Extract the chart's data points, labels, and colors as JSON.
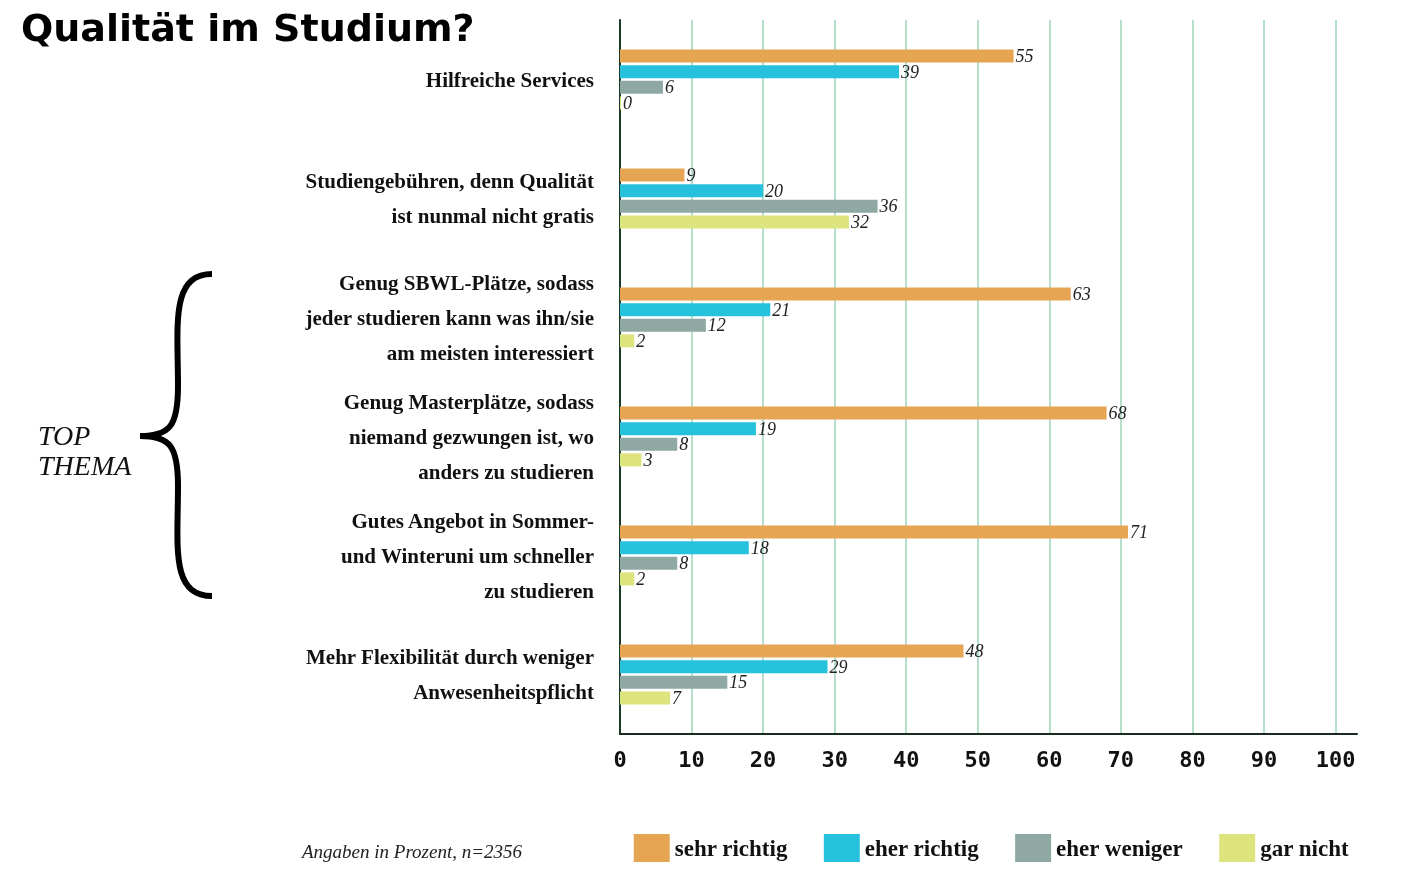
{
  "chart_data": {
    "type": "bar",
    "orientation": "horizontal",
    "title": "Qualität im Studium?",
    "categories": [
      "Hilfreiche Services",
      "Studiengebühren, denn Qualität\nist nunmal nicht gratis",
      "Genug SBWL-Plätze, sodass\njeder studieren kann was ihn/sie\nam meisten interessiert",
      "Genug Masterplätze, sodass\nniemand gezwungen ist, wo\nanders zu studieren",
      "Gutes Angebot in Sommer-\nund Winteruni um schneller\nzu studieren",
      "Mehr Flexibilität durch weniger\nAnwesenheitspflicht"
    ],
    "series": [
      {
        "name": "sehr richtig",
        "color": "#e5a553",
        "values": [
          55,
          9,
          63,
          68,
          71,
          48
        ]
      },
      {
        "name": "eher richtig",
        "color": "#26c2dd",
        "values": [
          39,
          20,
          21,
          19,
          18,
          29
        ]
      },
      {
        "name": "eher weniger",
        "color": "#8fa8a3",
        "values": [
          6,
          36,
          12,
          8,
          8,
          15
        ]
      },
      {
        "name": "gar nicht",
        "color": "#dde37d",
        "values": [
          0,
          32,
          2,
          3,
          2,
          7
        ]
      }
    ],
    "xlim": [
      0,
      103
    ],
    "xticks": [
      0,
      10,
      20,
      30,
      40,
      50,
      60,
      70,
      80,
      90,
      100
    ],
    "grid": "x",
    "legend": "bottom right",
    "data_labels": true,
    "annotations": [
      "TOP\nTHEMA",
      "Angaben in Prozent, n=2356"
    ]
  }
}
